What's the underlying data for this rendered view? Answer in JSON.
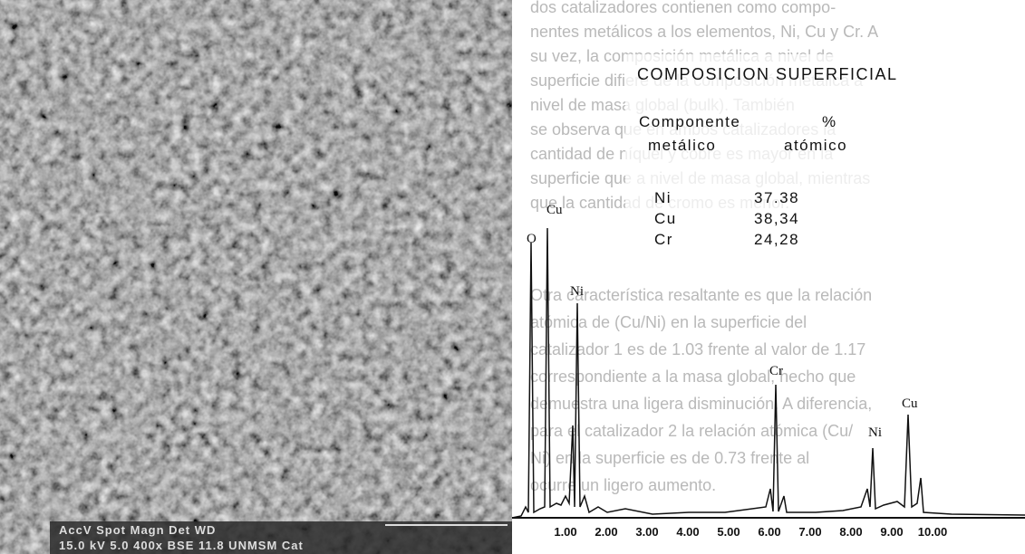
{
  "body_text": {
    "paragraph_1": [
      "dos catalizadores contienen como compo-",
      "nentes metálicos a los elementos, Ni, Cu y Cr. A",
      "su vez, la composición metálica a nivel de",
      "superficie difiere de la composición metálica a",
      "nivel de masa global (bulk). También",
      "se observa que en ambos catalizadores la",
      "cantidad de níquel y cobre es mayor en la",
      "superficie que a nivel de masa global, mientras",
      "que la cantidad de cromo es menor."
    ],
    "paragraph_2": [
      "Otra característica resaltante es que la relación",
      "atómica de (Cu/Ni) en la superficie del",
      "catalizador 1 es de 1.03 frente al valor de 1.17",
      "correspondiente a la masa global, hecho que",
      "demuestra una ligera disminución. A diferencia,",
      "para el catalizador 2 la relación atómica (Cu/",
      "Ni) en la superficie es de 0.73 frente al",
      "ocurre un ligero aumento."
    ]
  },
  "micrograph": {
    "caption_header": "AccV   Spot Magn    Det  WD",
    "caption_values": "15.0 kV 5.0  400x   BSE  11.8  UNMSM  Cat"
  },
  "table": {
    "title": "COMPOSICION SUPERFICIAL",
    "headers": [
      [
        "Componente",
        "metálico"
      ],
      [
        "%",
        "atómico"
      ]
    ],
    "rows": [
      [
        "Ni",
        "37.38"
      ],
      [
        "Cu",
        "38,34"
      ],
      [
        "Cr",
        "24,28"
      ]
    ]
  },
  "spectrum": {
    "peak_labels": [
      "Cu",
      "O",
      "Ni",
      "Cr",
      "Ni",
      "Cu"
    ],
    "axis_labels": [
      "1.00",
      "2.00",
      "3.00",
      "4.00",
      "5.00",
      "6.00",
      "7.00",
      "8.00",
      "9.00",
      "10.00"
    ]
  }
}
